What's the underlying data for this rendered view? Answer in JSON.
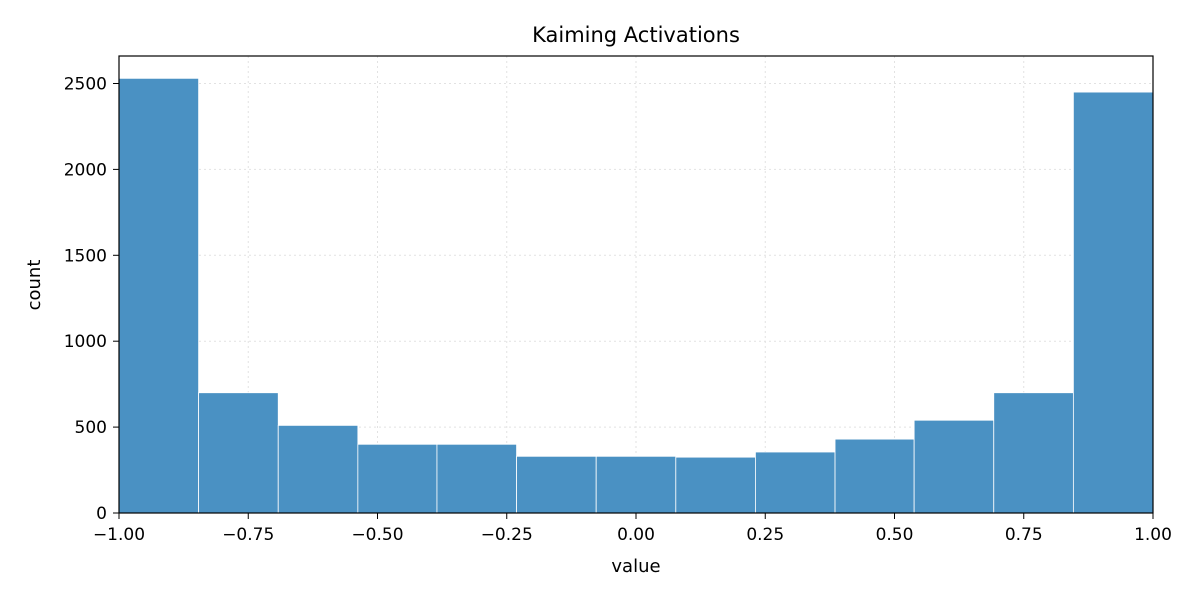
{
  "chart_data": {
    "type": "bar",
    "title": "Kaiming Activations",
    "xlabel": "value",
    "ylabel": "count",
    "xlim": [
      -1.0,
      1.0
    ],
    "ylim": [
      0,
      2660
    ],
    "grid": true,
    "bins": [
      {
        "x0": -1.0,
        "x1": -0.846,
        "count": 2530
      },
      {
        "x0": -0.846,
        "x1": -0.692,
        "count": 700
      },
      {
        "x0": -0.692,
        "x1": -0.538,
        "count": 510
      },
      {
        "x0": -0.538,
        "x1": -0.385,
        "count": 400
      },
      {
        "x0": -0.385,
        "x1": -0.231,
        "count": 400
      },
      {
        "x0": -0.231,
        "x1": -0.077,
        "count": 330
      },
      {
        "x0": -0.077,
        "x1": 0.077,
        "count": 330
      },
      {
        "x0": 0.077,
        "x1": 0.231,
        "count": 325
      },
      {
        "x0": 0.231,
        "x1": 0.385,
        "count": 355
      },
      {
        "x0": 0.385,
        "x1": 0.538,
        "count": 430
      },
      {
        "x0": 0.538,
        "x1": 0.692,
        "count": 540
      },
      {
        "x0": 0.692,
        "x1": 0.846,
        "count": 700
      },
      {
        "x0": 0.846,
        "x1": 1.0,
        "count": 2450
      }
    ],
    "xticks": [
      {
        "value": -1.0,
        "label": "−1.00"
      },
      {
        "value": -0.75,
        "label": "−0.75"
      },
      {
        "value": -0.5,
        "label": "−0.50"
      },
      {
        "value": -0.25,
        "label": "−0.25"
      },
      {
        "value": 0.0,
        "label": "0.00"
      },
      {
        "value": 0.25,
        "label": "0.25"
      },
      {
        "value": 0.5,
        "label": "0.50"
      },
      {
        "value": 0.75,
        "label": "0.75"
      },
      {
        "value": 1.0,
        "label": "1.00"
      }
    ],
    "yticks": [
      {
        "value": 0,
        "label": "0"
      },
      {
        "value": 500,
        "label": "500"
      },
      {
        "value": 1000,
        "label": "1000"
      },
      {
        "value": 1500,
        "label": "1500"
      },
      {
        "value": 2000,
        "label": "2000"
      },
      {
        "value": 2500,
        "label": "2500"
      }
    ],
    "colors": {
      "bar": "#4a91c3",
      "bar_edge": "#ffffff"
    }
  }
}
